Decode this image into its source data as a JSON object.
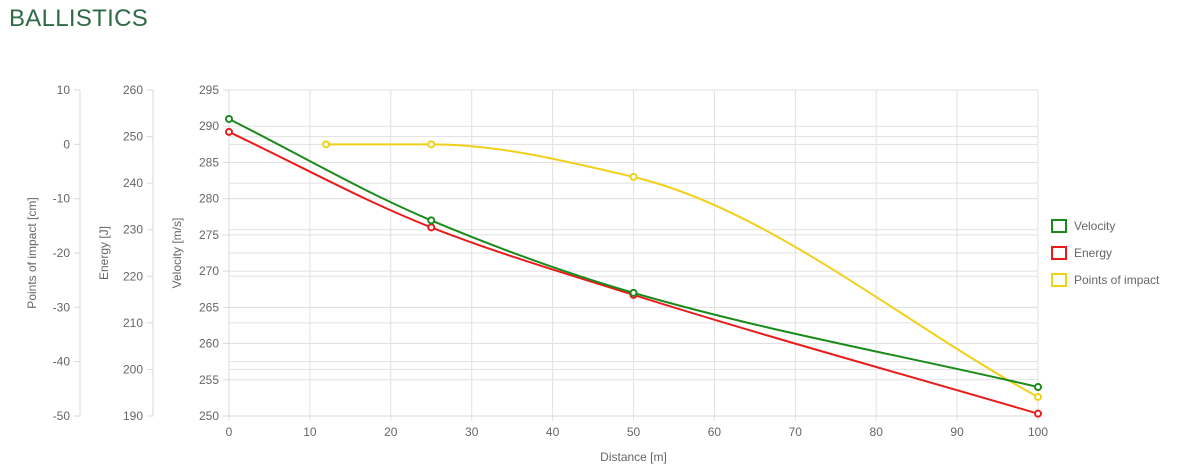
{
  "page": {
    "title": "BALLISTICS"
  },
  "chart_data": {
    "type": "line",
    "title": "BALLISTICS",
    "xlabel": "Distance [m]",
    "xlim": [
      0,
      100
    ],
    "x_ticks": [
      0,
      10,
      20,
      30,
      40,
      50,
      60,
      70,
      80,
      90,
      100
    ],
    "grid": true,
    "legend_position": "right",
    "y_axes": [
      {
        "id": "poi",
        "label": "Points of impact [cm]",
        "lim": [
          -50,
          10
        ],
        "ticks": [
          10,
          0,
          -10,
          -20,
          -30,
          -40,
          -50
        ]
      },
      {
        "id": "energy",
        "label": "Energy [J]",
        "lim": [
          190,
          260
        ],
        "ticks": [
          260,
          250,
          240,
          230,
          220,
          210,
          200,
          190
        ]
      },
      {
        "id": "velocity",
        "label": "Velocity [m/s]",
        "lim": [
          250,
          295
        ],
        "ticks": [
          295,
          290,
          285,
          280,
          275,
          270,
          265,
          260,
          255,
          250
        ]
      }
    ],
    "series": [
      {
        "name": "Velocity",
        "axis": "velocity",
        "color": "#1a8a1a",
        "points": [
          [
            0,
            291
          ],
          [
            25,
            277
          ],
          [
            50,
            267
          ],
          [
            100,
            254
          ]
        ]
      },
      {
        "name": "Energy",
        "axis": "energy",
        "color": "#e81c1c",
        "points": [
          [
            0,
            251
          ],
          [
            25,
            230.5
          ],
          [
            50,
            216
          ],
          [
            100,
            190.5
          ]
        ]
      },
      {
        "name": "Points of impact",
        "axis": "poi",
        "color": "#f2d01a",
        "points": [
          [
            12,
            0
          ],
          [
            25,
            0
          ],
          [
            50,
            -6
          ],
          [
            100,
            -46.5
          ]
        ]
      }
    ]
  }
}
